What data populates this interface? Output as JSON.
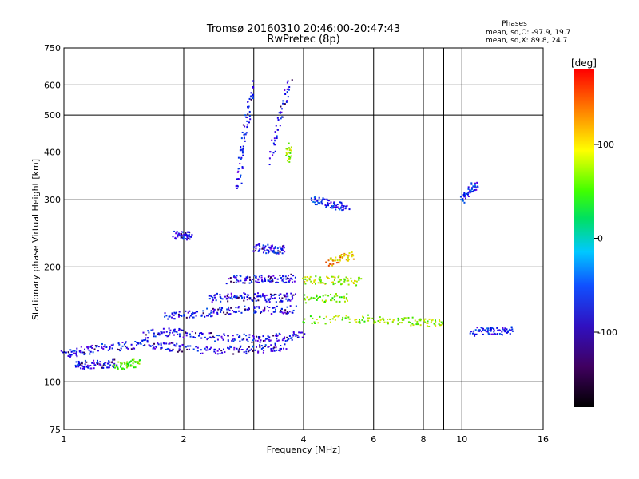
{
  "chart_data": {
    "type": "scatter",
    "title": "Tromsø 20160310 20:46:00-20:47:43",
    "subtitle": "RwPretec (8p)",
    "xlabel": "Frequency [MHz]",
    "ylabel": "Stationary phase Virtual Height [km]",
    "x_scale": "log",
    "y_scale": "log",
    "xlim": [
      1,
      16
    ],
    "ylim": [
      75,
      750
    ],
    "x_ticks": [
      1,
      2,
      4,
      6,
      8,
      10,
      16
    ],
    "y_ticks": [
      75,
      100,
      200,
      300,
      400,
      500,
      600,
      750
    ],
    "x_gridlines": [
      2,
      3,
      4,
      6,
      8,
      9,
      10
    ],
    "y_gridlines": [
      100,
      200,
      300,
      400,
      500,
      600
    ],
    "grid": true,
    "phases": {
      "heading": "Phases",
      "line_o": "mean, sd,O: -97.9, 19.7",
      "line_x": "mean, sd,X:  89.8, 24.7"
    },
    "colorbar": {
      "label": "[deg]",
      "range": [
        -180,
        180
      ],
      "ticks": [
        100,
        0,
        -100
      ],
      "colormap": "rainbow (black-violet-blue-cyan-green-yellow-orange-red)"
    },
    "traces": [
      {
        "x": [
          1.0,
          1.1,
          1.2,
          1.4,
          1.6,
          1.8,
          2.0,
          2.4,
          2.8,
          3.2,
          3.6
        ],
        "y": [
          118,
          120,
          122,
          124,
          126,
          124,
          122,
          121,
          121,
          122,
          124
        ],
        "phase": -110
      },
      {
        "x": [
          1.07,
          1.15,
          1.25,
          1.35
        ],
        "y": [
          110,
          111,
          111,
          112
        ],
        "phase": -110
      },
      {
        "x": [
          1.35,
          1.45,
          1.55
        ],
        "y": [
          110,
          111,
          112
        ],
        "phase": 60
      },
      {
        "x": [
          1.6,
          1.8,
          2.0,
          2.4,
          2.8,
          3.2,
          3.6,
          4.0
        ],
        "y": [
          133,
          135,
          134,
          131,
          130,
          130,
          131,
          133
        ],
        "phase": -110
      },
      {
        "x": [
          1.8,
          2.0,
          2.3,
          2.6,
          3.0,
          3.4,
          3.8
        ],
        "y": [
          148,
          150,
          152,
          154,
          154,
          154,
          155
        ],
        "phase": -110
      },
      {
        "x": [
          4.0,
          5.0,
          6.0,
          7.0,
          8.0,
          9.0
        ],
        "y": [
          145,
          146,
          146,
          145,
          143,
          142
        ],
        "phase": 80
      },
      {
        "x": [
          2.3,
          2.6,
          2.9,
          3.2,
          3.5,
          3.8
        ],
        "y": [
          165,
          167,
          167,
          166,
          166,
          167
        ],
        "phase": -110
      },
      {
        "x": [
          4.0,
          4.6,
          5.2
        ],
        "y": [
          165,
          166,
          166
        ],
        "phase": 70
      },
      {
        "x": [
          2.6,
          2.9,
          3.2,
          3.5,
          3.8
        ],
        "y": [
          185,
          186,
          186,
          186,
          187
        ],
        "phase": -110
      },
      {
        "x": [
          4.0,
          4.5,
          5.0,
          5.6
        ],
        "y": [
          185,
          185,
          184,
          183
        ],
        "phase": 90
      },
      {
        "x": [
          3.0,
          3.2,
          3.4,
          3.6
        ],
        "y": [
          225,
          223,
          222,
          222
        ],
        "phase": -110
      },
      {
        "x": [
          1.9,
          2.0,
          2.1
        ],
        "y": [
          242,
          242,
          241
        ],
        "phase": -110
      },
      {
        "x": [
          4.6,
          5.0,
          5.4
        ],
        "y": [
          205,
          210,
          215
        ],
        "phase": 130
      },
      {
        "x": [
          4.2,
          4.5,
          4.8,
          5.2
        ],
        "y": [
          300,
          295,
          290,
          288
        ],
        "phase": -100
      },
      {
        "x": [
          2.75,
          2.8,
          2.9,
          3.0
        ],
        "y": [
          320,
          400,
          500,
          620
        ],
        "phase": -110
      },
      {
        "x": [
          3.3,
          3.5,
          3.7
        ],
        "y": [
          380,
          500,
          620
        ],
        "phase": -110
      },
      {
        "x": [
          3.65,
          3.7
        ],
        "y": [
          380,
          420
        ],
        "phase": 80
      },
      {
        "x": [
          10.0,
          10.5,
          11.0
        ],
        "y": [
          300,
          320,
          330
        ],
        "phase": -100
      },
      {
        "x": [
          10.5,
          11.5,
          12.5,
          13.5
        ],
        "y": [
          135,
          136,
          136,
          136
        ],
        "phase": -100
      }
    ]
  }
}
